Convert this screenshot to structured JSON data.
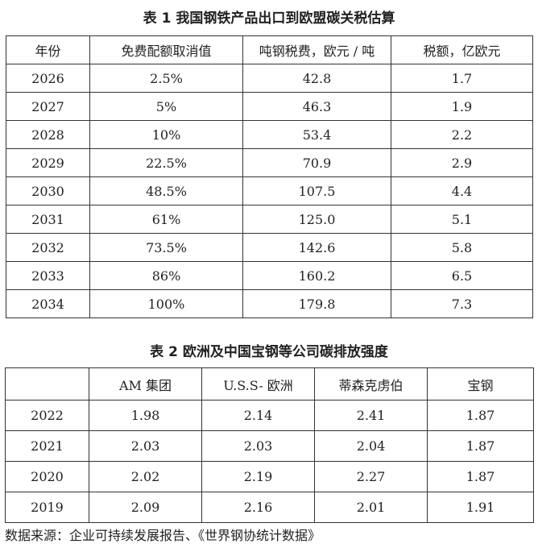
{
  "table1": {
    "title": "表 1  我国钢铁产品出口到欧盟碳关税估算",
    "headers": [
      "年份",
      "免费配额取消值",
      "吨钢税费，欧元 / 吨",
      "税额，亿欧元"
    ],
    "rows": [
      [
        "2026",
        "2.5%",
        "42.8",
        "1.7"
      ],
      [
        "2027",
        "5%",
        "46.3",
        "1.9"
      ],
      [
        "2028",
        "10%",
        "53.4",
        "2.2"
      ],
      [
        "2029",
        "22.5%",
        "70.9",
        "2.9"
      ],
      [
        "2030",
        "48.5%",
        "107.5",
        "4.4"
      ],
      [
        "2031",
        "61%",
        "125.0",
        "5.1"
      ],
      [
        "2032",
        "73.5%",
        "142.6",
        "5.8"
      ],
      [
        "2033",
        "86%",
        "160.2",
        "6.5"
      ],
      [
        "2034",
        "100%",
        "179.8",
        "7.3"
      ]
    ]
  },
  "table2": {
    "title": "表 2  欧洲及中国宝钢等公司碳排放强度",
    "headers": [
      "",
      "AM 集团",
      "U.S.S- 欧洲",
      "蒂森克虏伯",
      "宝钢"
    ],
    "rows": [
      [
        "2022",
        "1.98",
        "2.14",
        "2.41",
        "1.87"
      ],
      [
        "2021",
        "2.03",
        "2.03",
        "2.04",
        "1.87"
      ],
      [
        "2020",
        "2.02",
        "2.19",
        "2.27",
        "1.87"
      ],
      [
        "2019",
        "2.09",
        "2.16",
        "2.01",
        "1.91"
      ]
    ]
  },
  "source": "数据来源：企业可持续发展报告、《世界钢协统计数据》"
}
